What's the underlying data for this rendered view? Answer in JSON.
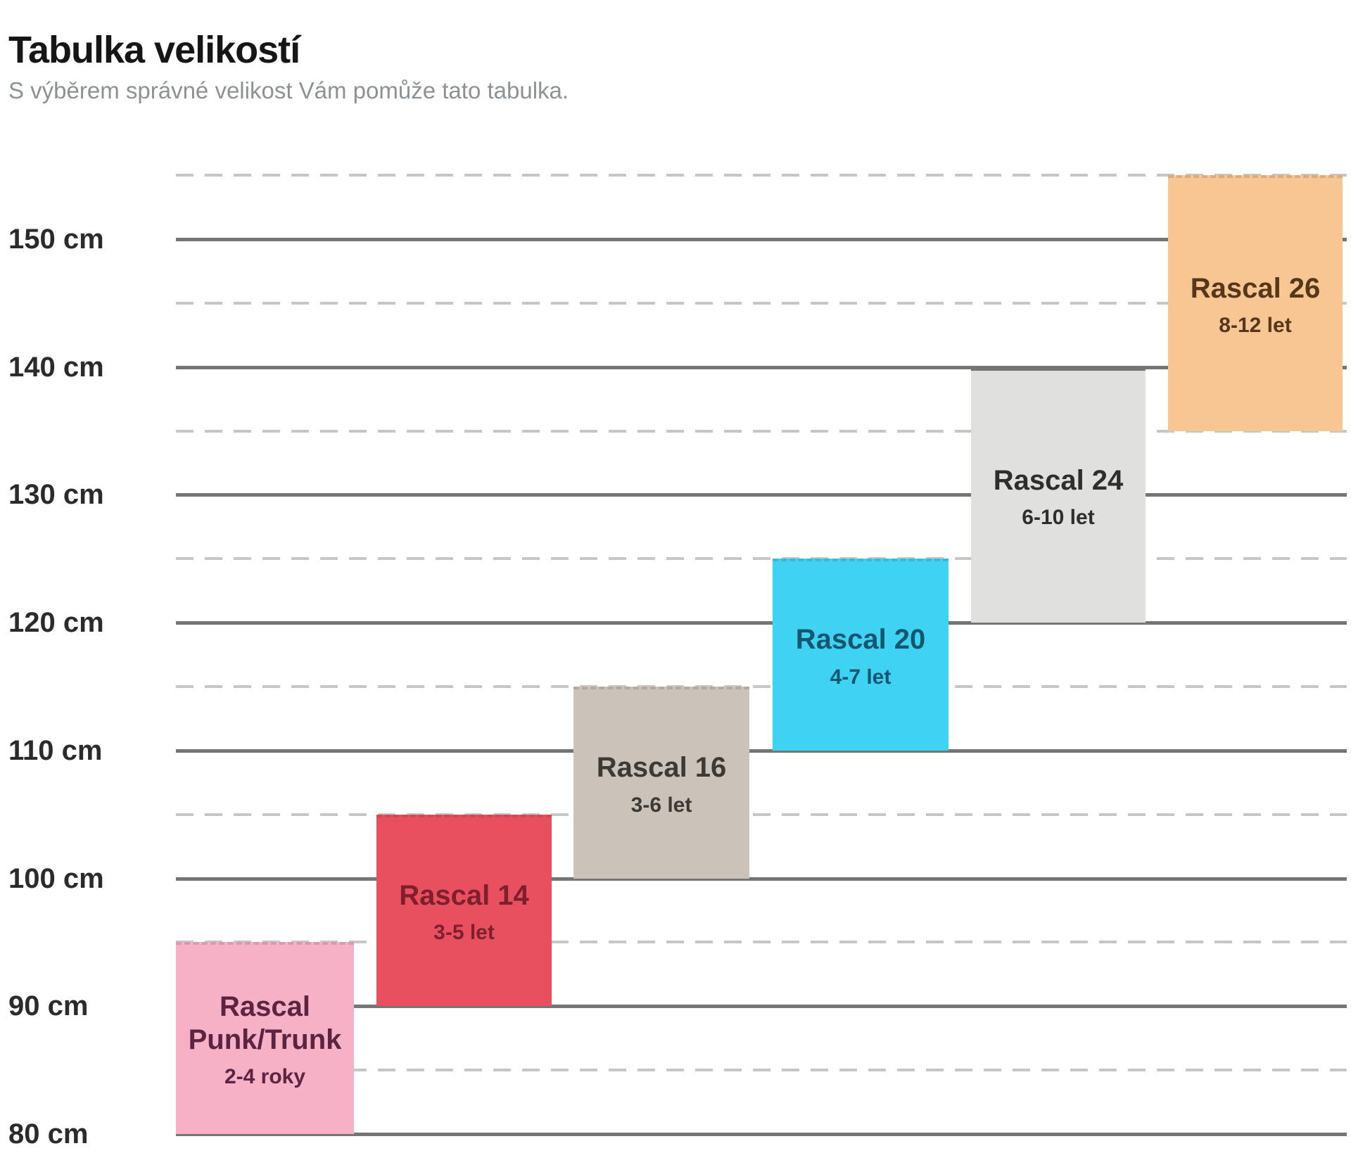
{
  "page": {
    "title": "Tabulka velikostí",
    "subtitle": "S výběrem správné velikost Vám pomůže tato tabulka."
  },
  "chart_data": {
    "type": "bar",
    "subtype": "floating-range-blocks",
    "title": "Tabulka velikostí",
    "subtitle": "S výběrem správné velikost Vám pomůže tato tabulka.",
    "unit": "cm",
    "ylim": [
      78,
      157
    ],
    "grid": "solid lines every 10 cm, light dashed lines every 5 cm, horizontal only",
    "legend": "none",
    "yticks": [
      {
        "cm": 150,
        "label": "150 cm"
      },
      {
        "cm": 140,
        "label": "140 cm"
      },
      {
        "cm": 130,
        "label": "130 cm"
      },
      {
        "cm": 120,
        "label": "120 cm"
      },
      {
        "cm": 110,
        "label": "110 cm"
      },
      {
        "cm": 100,
        "label": "100 cm"
      },
      {
        "cm": 90,
        "label": "90 cm"
      },
      {
        "cm": 80,
        "label": "80 cm"
      }
    ],
    "dashed_gridlines_cm": [
      155,
      145,
      135,
      125,
      115,
      105,
      95,
      85
    ],
    "series": [
      {
        "name": "Rascal Punk/Trunk",
        "age": "2-4 roky",
        "range_cm": [
          80,
          95
        ],
        "fill": "#f7b1c6",
        "text_color": "#5c2440"
      },
      {
        "name": "Rascal 14",
        "age": "3-5 let",
        "range_cm": [
          90,
          105
        ],
        "fill": "#e8505f",
        "text_color": "#7d1f2d"
      },
      {
        "name": "Rascal 16",
        "age": "3-6 let",
        "range_cm": [
          100,
          115
        ],
        "fill": "#cbc2b9",
        "text_color": "#3d3935"
      },
      {
        "name": "Rascal 20",
        "age": "4-7 let",
        "range_cm": [
          110,
          125
        ],
        "fill": "#3ed3f2",
        "text_color": "#14566f"
      },
      {
        "name": "Rascal 24",
        "age": "6-10 let",
        "range_cm": [
          120,
          140
        ],
        "fill": "#e0e0de",
        "text_color": "#2e2e2e"
      },
      {
        "name": "Rascal 26",
        "age": "8-12 let",
        "range_cm": [
          135,
          155
        ],
        "fill": "#f8c693",
        "text_color": "#56371a"
      }
    ],
    "colors": {
      "background": "#ffffff",
      "solid_gridline": "#757575",
      "dashed_gridline": "#c6c6c6",
      "axis_label": "#2b2b2b",
      "title": "#161616",
      "subtitle": "#8d9195"
    }
  }
}
